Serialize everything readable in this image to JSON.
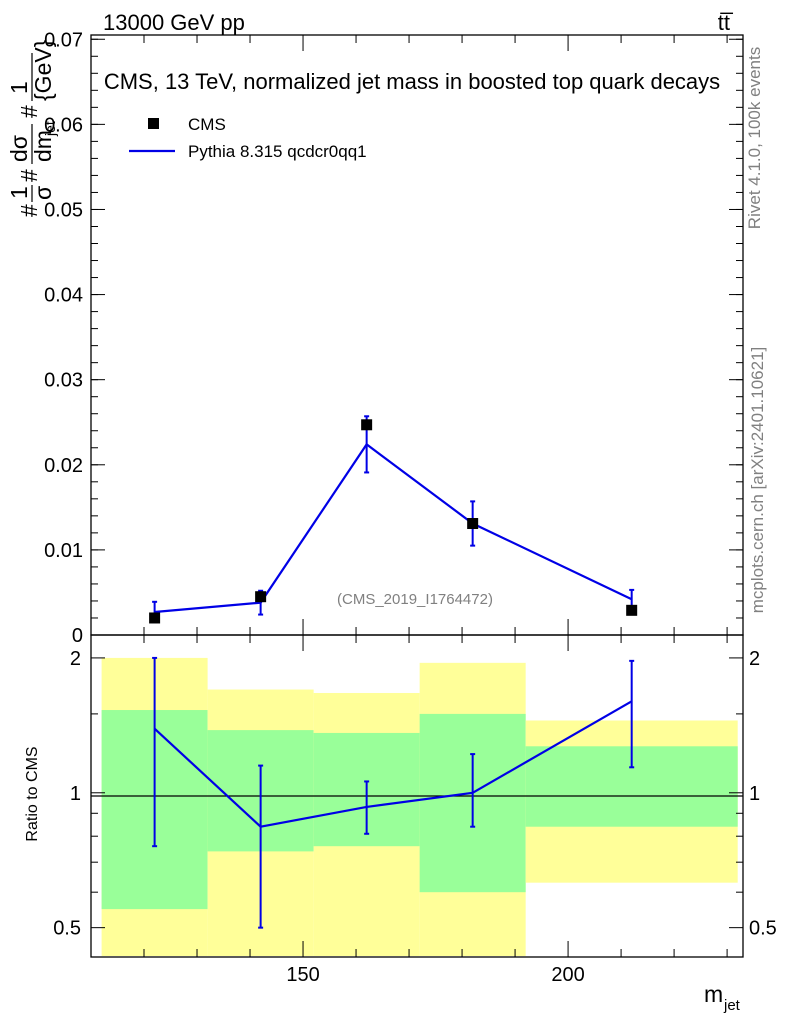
{
  "header": {
    "left": "13000 GeV pp",
    "right": "tt̅"
  },
  "side_labels": {
    "rivet": "Rivet 4.1.0,  100k events",
    "mcplots": "mcplots.cern.ch [arXiv:2401.10621]"
  },
  "colors": {
    "mc_line": "#0000e6",
    "data_marker": "#000000",
    "band_inner": "#99ff99",
    "band_outer": "#ffff99"
  },
  "chart_data": [
    {
      "type": "line",
      "title": "CMS, 13 TeV, normalized jet mass in boosted top quark decays",
      "watermark": "(CMS_2019_I1764472)",
      "ylabel": "#frac{1}{σ} #frac{dσ}{dm_{jet}} #frac{1}{{GeV}}",
      "ylabel_parts": [
        "#",
        "1",
        "σ",
        "#",
        "dσ",
        "dm",
        "jet",
        "#",
        "1",
        "{GeV}"
      ],
      "xlabel": "",
      "xlim": [
        110,
        233
      ],
      "ylim": [
        0,
        0.0705
      ],
      "y_ticks": [
        0,
        0.01,
        0.02,
        0.03,
        0.04,
        0.05,
        0.06,
        0.07
      ],
      "y_tick_labels": [
        "0",
        "0.01",
        "0.02",
        "0.03",
        "0.04",
        "0.05",
        "0.06",
        "0.07"
      ],
      "bins": [
        [
          112,
          132
        ],
        [
          132,
          152
        ],
        [
          152,
          172
        ],
        [
          172,
          192
        ],
        [
          192,
          232
        ]
      ],
      "legend": {
        "position": "top-left",
        "data_label": "CMS",
        "mc_label": "Pythia 8.315 qcdcr0qq1"
      },
      "series": [
        {
          "name": "CMS",
          "x": [
            122,
            142,
            162,
            182,
            212
          ],
          "y": [
            0.002,
            0.0045,
            0.0247,
            0.0131,
            0.0029
          ],
          "y_err": [
            0.0,
            0.0,
            0.0,
            0.0,
            0.0
          ]
        },
        {
          "name": "Pythia 8.315 qcdcr0qq1",
          "x": [
            122,
            142,
            162,
            182,
            212
          ],
          "y": [
            0.0027,
            0.0038,
            0.0224,
            0.0131,
            0.0042
          ],
          "y_err": [
            0.0012,
            0.0014,
            0.0033,
            0.0026,
            0.0011
          ]
        }
      ]
    },
    {
      "type": "line",
      "title": "",
      "ylabel": "Ratio to CMS",
      "xlabel": "m_jet",
      "xlabel_main": "m",
      "xlabel_sub": "jet",
      "xlim": [
        110,
        233
      ],
      "ylim": [
        0.43,
        2.25
      ],
      "log_y": true,
      "x_ticks": [
        150,
        200
      ],
      "x_tick_labels": [
        "150",
        "200"
      ],
      "y_ticks": [
        0.5,
        1,
        2
      ],
      "y_tick_labels": [
        "0.5",
        "1",
        "2"
      ],
      "bands": {
        "bins": [
          [
            112,
            132
          ],
          [
            132,
            152
          ],
          [
            152,
            172
          ],
          [
            172,
            192
          ],
          [
            192,
            232
          ]
        ],
        "inner_low": [
          0.55,
          0.74,
          0.76,
          0.6,
          0.84
        ],
        "inner_high": [
          1.53,
          1.38,
          1.36,
          1.5,
          1.27
        ],
        "outer_low": [
          0.43,
          0.43,
          0.41,
          0.43,
          0.63
        ],
        "outer_high": [
          2.0,
          1.7,
          1.67,
          1.95,
          1.45
        ]
      },
      "series": [
        {
          "name": "Pythia 8.315 qcdcr0qq1 / CMS",
          "x": [
            122,
            142,
            162,
            182,
            212
          ],
          "y": [
            1.39,
            0.84,
            0.93,
            1.0,
            1.6
          ],
          "y_low": [
            0.76,
            0.5,
            0.81,
            0.84,
            1.14
          ],
          "y_high": [
            2.0,
            1.15,
            1.06,
            1.22,
            1.97
          ]
        }
      ]
    }
  ]
}
